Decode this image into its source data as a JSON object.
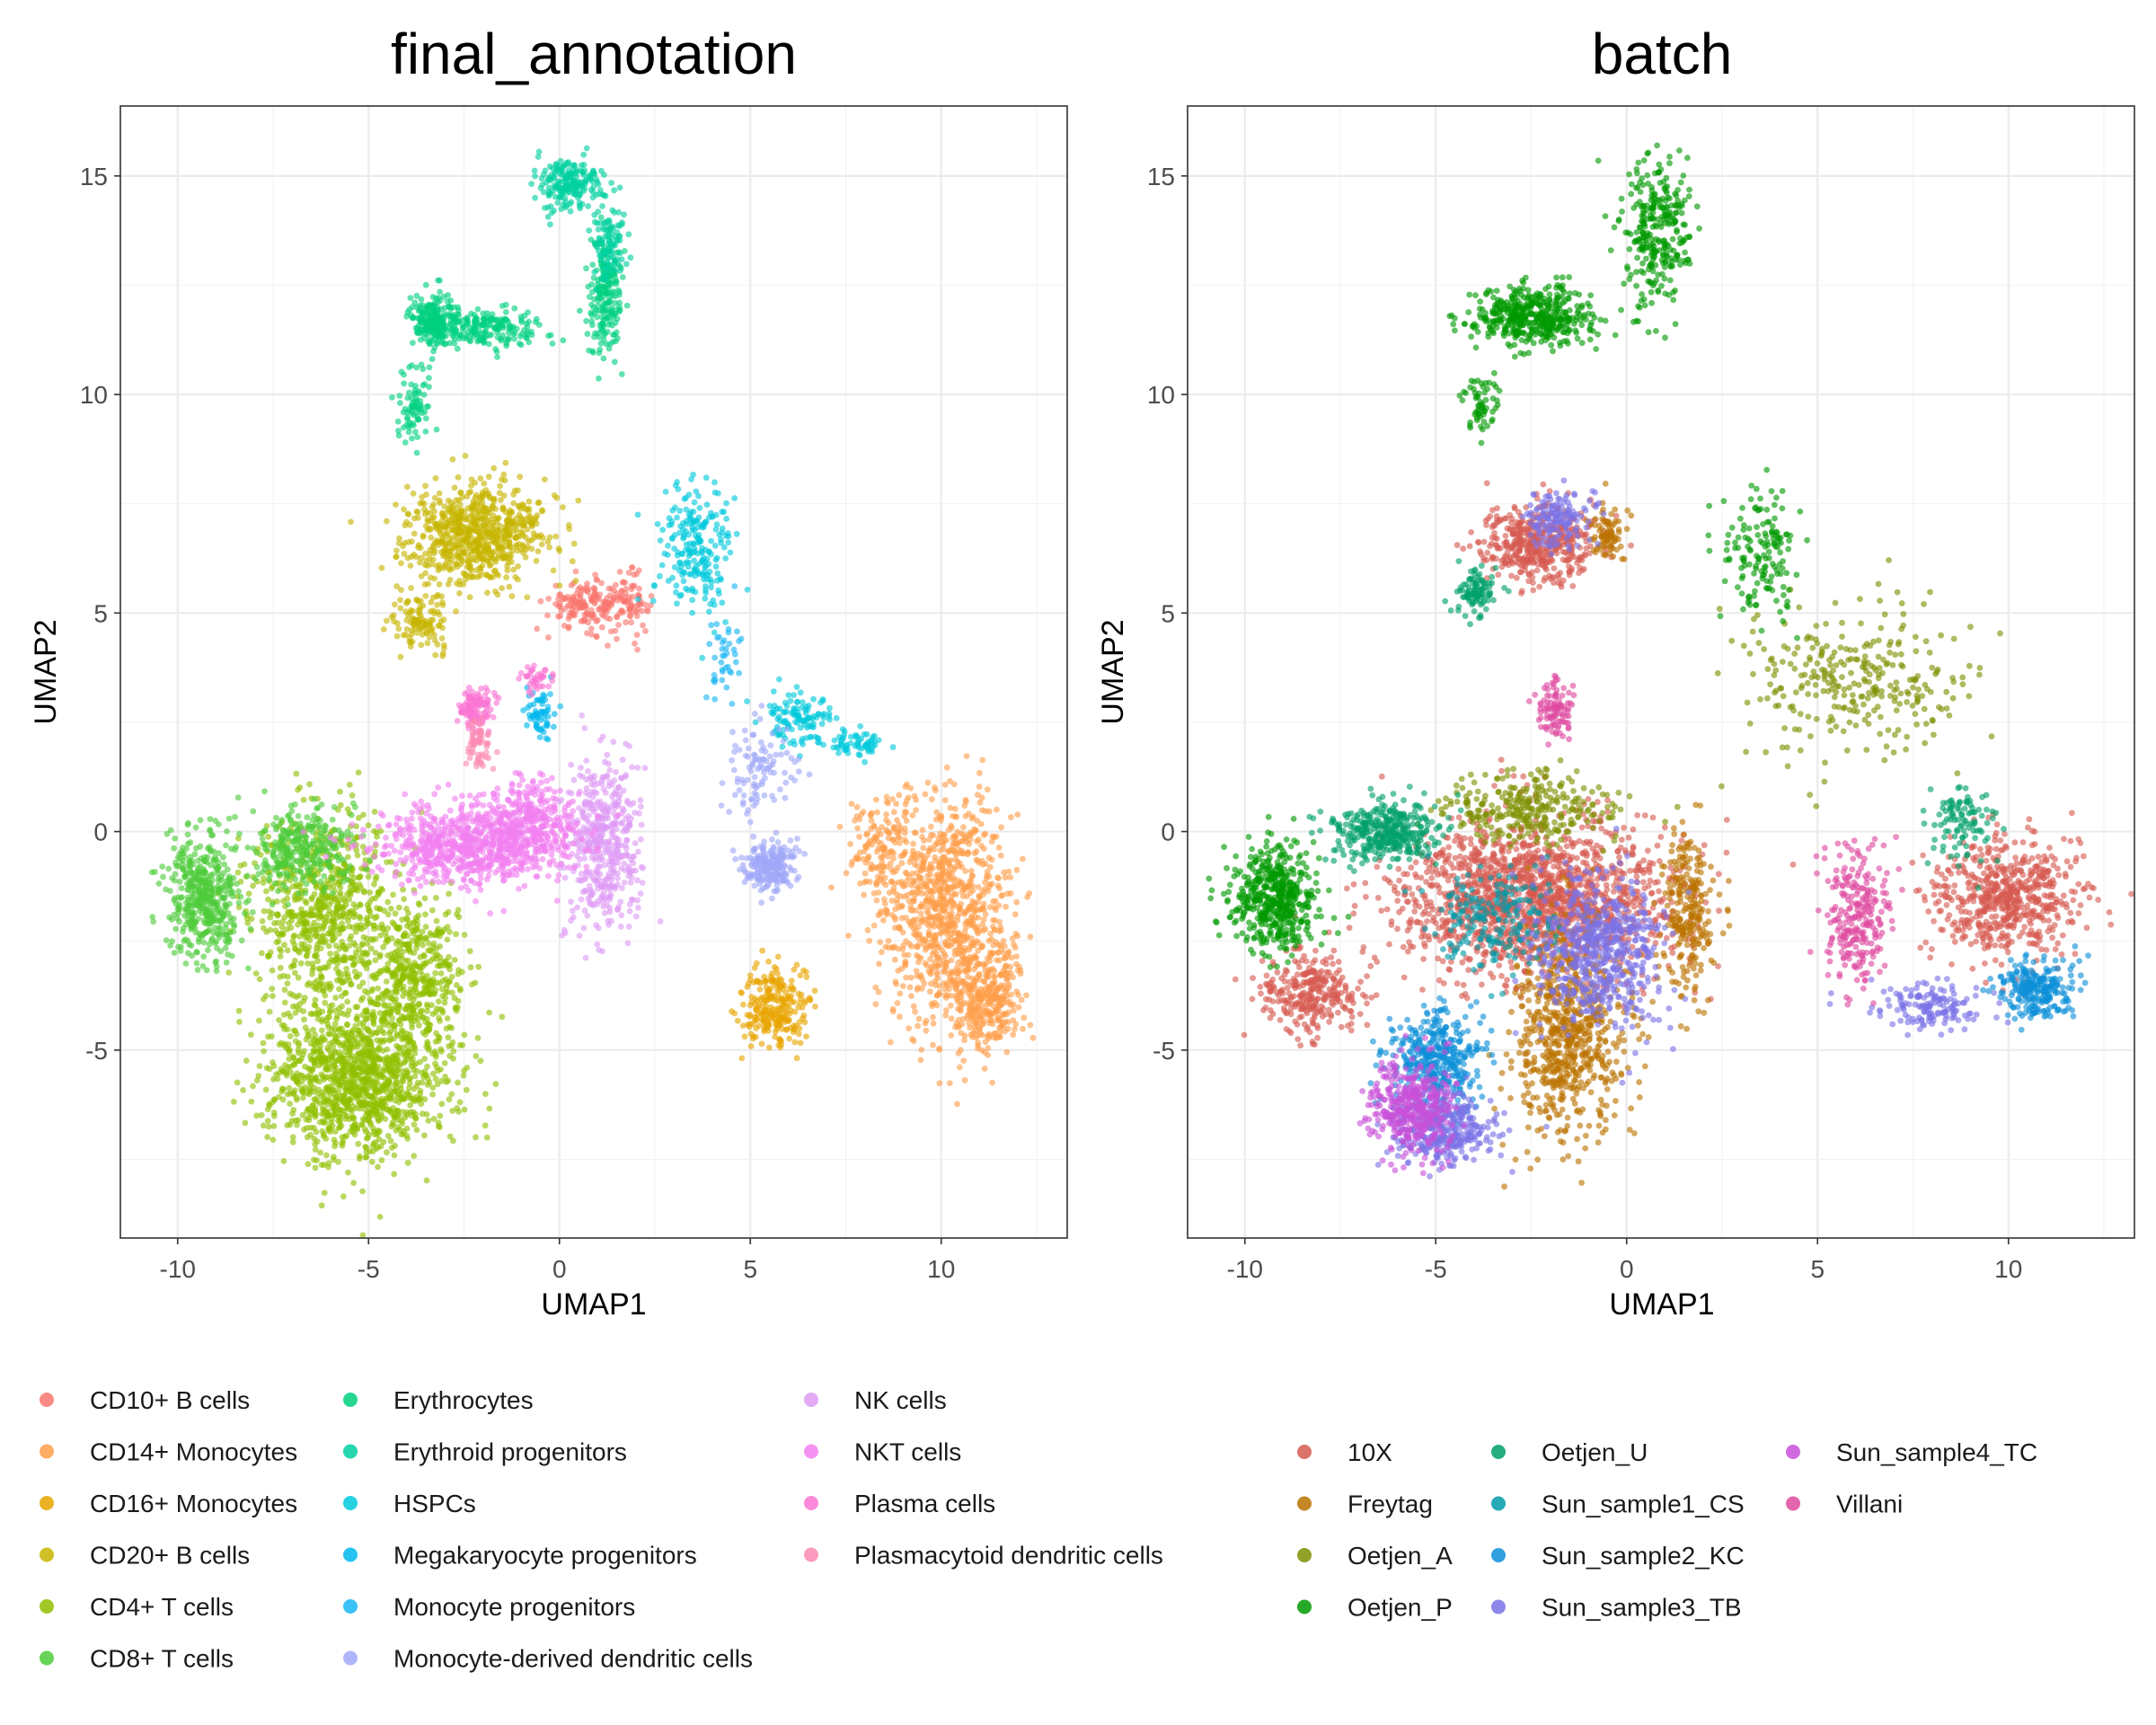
{
  "chart_data": [
    {
      "type": "scatter",
      "title": "final_annotation",
      "xlabel": "UMAP1",
      "ylabel": "UMAP2",
      "xlim": [
        -11.5,
        13.3
      ],
      "ylim": [
        -9.3,
        16.6
      ],
      "xticks": [
        -10,
        -5,
        0,
        5,
        10
      ],
      "xtick_labels": [
        "-10",
        "-5",
        "0",
        "5",
        "10"
      ],
      "yticks": [
        -5,
        0,
        5,
        10,
        15
      ],
      "ytick_labels": [
        "-5",
        "0",
        "5",
        "10",
        "15"
      ],
      "grid": true,
      "legend_position": "bottom",
      "legend_columns": [
        [
          "CD10+ B cells",
          "CD14+ Monocytes",
          "CD16+ Monocytes",
          "CD20+ B cells",
          "CD4+ T cells",
          "CD8+ T cells"
        ],
        [
          "Erythrocytes",
          "Erythroid progenitors",
          "HSPCs",
          "Megakaryocyte progenitors",
          "Monocyte progenitors",
          "Monocyte-derived dendritic cells"
        ],
        [
          "NK cells",
          "NKT cells",
          "Plasma cells",
          "Plasmacytoid dendritic cells"
        ]
      ],
      "series": [
        {
          "name": "CD10+ B cells",
          "color": "#F8766D",
          "clusters": [
            [
              0.7,
              5.2,
              0.9,
              0.5,
              150
            ],
            [
              1.8,
              5.2,
              0.5,
              0.6,
              80
            ]
          ]
        },
        {
          "name": "CD14+ Monocytes",
          "color": "#FF9E4A",
          "clusters": [
            [
              10.2,
              -1.8,
              1.5,
              2.4,
              900
            ],
            [
              11.2,
              -3.8,
              0.9,
              1.1,
              300
            ],
            [
              8.5,
              -0.5,
              0.8,
              1.2,
              150
            ]
          ]
        },
        {
          "name": "CD16+ Monocytes",
          "color": "#E8A500",
          "clusters": [
            [
              5.6,
              -4.0,
              0.8,
              0.8,
              250
            ]
          ]
        },
        {
          "name": "CD20+ B cells",
          "color": "#C6B500",
          "clusters": [
            [
              -2.2,
              6.8,
              1.6,
              1.0,
              700
            ],
            [
              -3.6,
              4.9,
              0.7,
              0.8,
              120
            ]
          ]
        },
        {
          "name": "CD4+ T cells",
          "color": "#8FC000",
          "clusters": [
            [
              -5.2,
              -5.6,
              2.2,
              1.7,
              1300
            ],
            [
              -6.2,
              -1.8,
              1.6,
              2.0,
              700
            ],
            [
              -3.8,
              -3.2,
              1.2,
              1.5,
              400
            ]
          ]
        },
        {
          "name": "CD8+ T cells",
          "color": "#4ECC3A",
          "clusters": [
            [
              -9.3,
              -1.5,
              0.9,
              1.3,
              450
            ],
            [
              -6.8,
              -0.4,
              1.2,
              0.9,
              300
            ]
          ]
        },
        {
          "name": "Erythrocytes",
          "color": "#00D07F",
          "clusters": [
            [
              -3.3,
              11.7,
              0.5,
              0.5,
              220
            ],
            [
              -1.9,
              11.5,
              1.3,
              0.4,
              200
            ],
            [
              -3.8,
              9.8,
              0.4,
              0.7,
              80
            ],
            [
              1.2,
              12.3,
              0.4,
              1.2,
              200
            ]
          ]
        },
        {
          "name": "Erythroid progenitors",
          "color": "#00D0A0",
          "clusters": [
            [
              0.2,
              14.8,
              0.7,
              0.5,
              200
            ],
            [
              1.3,
              13.5,
              0.4,
              0.8,
              100
            ]
          ]
        },
        {
          "name": "HSPCs",
          "color": "#00C9DC",
          "clusters": [
            [
              3.6,
              6.4,
              0.9,
              1.3,
              220
            ],
            [
              6.2,
              2.6,
              0.9,
              0.6,
              120
            ],
            [
              7.8,
              2.0,
              0.6,
              0.3,
              60
            ]
          ]
        },
        {
          "name": "Megakaryocyte progenitors",
          "color": "#00B8EE",
          "clusters": [
            [
              -0.5,
              2.7,
              0.4,
              0.6,
              60
            ]
          ]
        },
        {
          "name": "Monocyte progenitors",
          "color": "#1AB6F4",
          "clusters": [
            [
              4.2,
              4.0,
              0.5,
              0.8,
              40
            ]
          ]
        },
        {
          "name": "Monocyte-derived dendritic cells",
          "color": "#A0A8F8",
          "clusters": [
            [
              5.5,
              -0.8,
              0.6,
              0.5,
              220
            ],
            [
              5.3,
              1.5,
              0.8,
              1.0,
              100
            ]
          ]
        },
        {
          "name": "NK cells",
          "color": "#DE9BF5",
          "clusters": [
            [
              1.2,
              -0.3,
              0.9,
              1.9,
              450
            ]
          ]
        },
        {
          "name": "NKT cells",
          "color": "#F27FF0",
          "clusters": [
            [
              -2.2,
              -0.3,
              2.3,
              0.9,
              800
            ],
            [
              -0.7,
              0.3,
              1.0,
              0.8,
              250
            ]
          ]
        },
        {
          "name": "Plasma cells",
          "color": "#FA76D3",
          "clusters": [
            [
              -2.2,
              2.8,
              0.4,
              0.5,
              120
            ],
            [
              -0.6,
              3.5,
              0.4,
              0.3,
              40
            ]
          ]
        },
        {
          "name": "Plasmacytoid dendritic cells",
          "color": "#FB8AB3",
          "clusters": [
            [
              -2.1,
              2.0,
              0.3,
              0.5,
              60
            ]
          ]
        }
      ]
    },
    {
      "type": "scatter",
      "title": "batch",
      "xlabel": "UMAP1",
      "ylabel": "UMAP2",
      "xlim": [
        -11.5,
        13.3
      ],
      "ylim": [
        -9.3,
        16.6
      ],
      "xticks": [
        -10,
        -5,
        0,
        5,
        10
      ],
      "xtick_labels": [
        "-10",
        "-5",
        "0",
        "5",
        "10"
      ],
      "yticks": [
        -5,
        0,
        5,
        10,
        15
      ],
      "ytick_labels": [
        "-5",
        "0",
        "5",
        "10",
        "15"
      ],
      "grid": true,
      "legend_position": "bottom",
      "legend_columns": [
        [
          "10X",
          "Freytag",
          "Oetjen_A",
          "Oetjen_P"
        ],
        [
          "Oetjen_U",
          "Sun_sample1_CS",
          "Sun_sample2_KC",
          "Sun_sample3_TB"
        ],
        [
          "Sun_sample4_TC",
          "Villani"
        ]
      ],
      "series": [
        {
          "name": "10X",
          "color": "#D65B50",
          "clusters": [
            [
              -2.5,
              -1.5,
              3.2,
              1.6,
              1600
            ],
            [
              10.0,
              -1.5,
              1.6,
              1.2,
              600
            ],
            [
              -2.3,
              6.6,
              1.3,
              0.8,
              450
            ],
            [
              -8.3,
              -3.7,
              1.2,
              0.8,
              300
            ]
          ]
        },
        {
          "name": "Freytag",
          "color": "#BB7200",
          "clusters": [
            [
              -1.5,
              -4.6,
              1.3,
              2.2,
              700
            ],
            [
              1.6,
              -1.8,
              0.6,
              1.8,
              250
            ],
            [
              -0.5,
              6.8,
              0.4,
              0.6,
              80
            ]
          ]
        },
        {
          "name": "Oetjen_A",
          "color": "#7E8F00",
          "clusters": [
            [
              6.0,
              3.5,
              2.5,
              1.5,
              300
            ],
            [
              -2.5,
              0.5,
              2.0,
              0.7,
              300
            ]
          ]
        },
        {
          "name": "Oetjen_P",
          "color": "#009A00",
          "clusters": [
            [
              -9.2,
              -1.5,
              1.0,
              1.1,
              500
            ],
            [
              -2.5,
              11.8,
              1.5,
              0.6,
              450
            ],
            [
              0.8,
              13.8,
              0.8,
              1.5,
              300
            ],
            [
              3.6,
              6.4,
              0.9,
              1.3,
              150
            ],
            [
              -3.8,
              9.8,
              0.4,
              0.7,
              60
            ]
          ]
        },
        {
          "name": "Oetjen_U",
          "color": "#00A06A",
          "clusters": [
            [
              -6.3,
              0.0,
              1.3,
              0.6,
              350
            ],
            [
              -4.0,
              5.5,
              0.5,
              0.5,
              100
            ],
            [
              8.8,
              0.2,
              0.8,
              0.8,
              100
            ]
          ]
        },
        {
          "name": "Sun_sample1_CS",
          "color": "#009BA8",
          "clusters": [
            [
              -3.5,
              -2.0,
              1.4,
              1.0,
              200
            ]
          ]
        },
        {
          "name": "Sun_sample2_KC",
          "color": "#0D8FD8",
          "clusters": [
            [
              -5.0,
              -5.2,
              1.1,
              1.0,
              400
            ],
            [
              10.8,
              -3.6,
              0.9,
              0.6,
              250
            ]
          ]
        },
        {
          "name": "Sun_sample3_TB",
          "color": "#7A72E6",
          "clusters": [
            [
              -0.7,
              -2.8,
              1.5,
              1.5,
              600
            ],
            [
              -4.8,
              -6.8,
              1.2,
              0.7,
              350
            ],
            [
              -1.8,
              7.2,
              0.7,
              0.6,
              150
            ],
            [
              8.0,
              -4.0,
              1.2,
              0.5,
              150
            ]
          ]
        },
        {
          "name": "Sun_sample4_TC",
          "color": "#C850D8",
          "clusters": [
            [
              -5.6,
              -6.3,
              1.0,
              1.0,
              400
            ]
          ]
        },
        {
          "name": "Villani",
          "color": "#DE4A9F",
          "clusters": [
            [
              6.0,
              -2.0,
              0.8,
              1.5,
              250
            ],
            [
              -1.9,
              2.8,
              0.4,
              0.6,
              100
            ]
          ]
        }
      ]
    }
  ]
}
